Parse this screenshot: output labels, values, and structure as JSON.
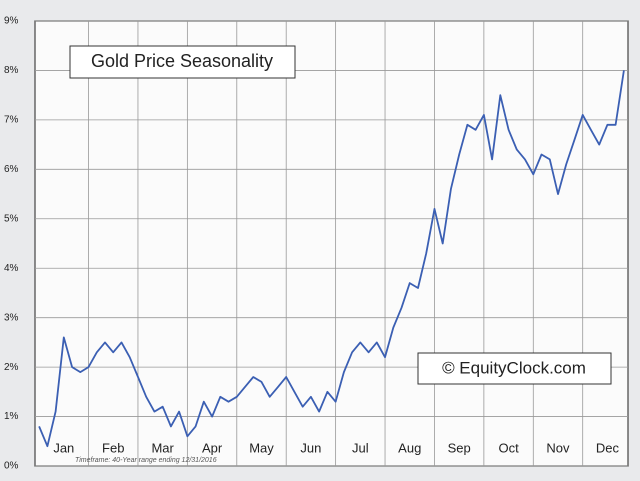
{
  "chart_data": {
    "type": "line",
    "title": "Gold Price Seasonality",
    "annotations": [
      "© EquityClock.com",
      "Timeframe: 40-Year range ending 12/31/2016"
    ],
    "categories": [
      null,
      null,
      null,
      "Jan",
      null,
      null,
      null,
      null,
      null,
      "Feb",
      null,
      null,
      null,
      null,
      null,
      "Mar",
      null,
      null,
      null,
      null,
      null,
      "Apr",
      null,
      null,
      null,
      null,
      null,
      "May",
      null,
      null,
      null,
      null,
      null,
      "Jun",
      null,
      null,
      null,
      null,
      null,
      "Jul",
      null,
      null,
      null,
      null,
      null,
      "Aug",
      null,
      null,
      null,
      null,
      null,
      "Sep",
      null,
      null,
      null,
      null,
      null,
      "Oct",
      null,
      null,
      null,
      null,
      null,
      "Nov",
      null,
      null,
      null,
      null,
      null,
      "Dec",
      null,
      null
    ],
    "series": [
      {
        "name": "Gold",
        "color": "#3b5fb3",
        "values": [
          0.8,
          0.4,
          1.1,
          2.6,
          2.0,
          1.9,
          2.0,
          2.3,
          2.5,
          2.3,
          2.5,
          2.2,
          1.8,
          1.4,
          1.1,
          1.2,
          0.8,
          1.1,
          0.6,
          0.8,
          1.3,
          1.0,
          1.4,
          1.3,
          1.4,
          1.6,
          1.8,
          1.7,
          1.4,
          1.6,
          1.8,
          1.5,
          1.2,
          1.4,
          1.1,
          1.5,
          1.3,
          1.9,
          2.3,
          2.5,
          2.3,
          2.5,
          2.2,
          2.8,
          3.2,
          3.7,
          3.6,
          4.3,
          5.2,
          4.5,
          5.6,
          6.3,
          6.9,
          6.8,
          7.1,
          6.2,
          7.5,
          6.8,
          6.4,
          6.2,
          5.9,
          6.3,
          6.2,
          5.5,
          6.1,
          6.6,
          7.1,
          6.8,
          6.5,
          6.9,
          6.9,
          8.0
        ]
      }
    ],
    "ylim": [
      0,
      9
    ],
    "yticks": [
      {
        "value": 0,
        "label": "0%"
      },
      {
        "value": 1,
        "label": "1%"
      },
      {
        "value": 2,
        "label": "2%"
      },
      {
        "value": 3,
        "label": "3%"
      },
      {
        "value": 4,
        "label": "4%"
      },
      {
        "value": 5,
        "label": "5%"
      },
      {
        "value": 6,
        "label": "6%"
      },
      {
        "value": 7,
        "label": "7%"
      },
      {
        "value": 8,
        "label": "8%"
      },
      {
        "value": 9,
        "label": "9%"
      }
    ],
    "grid": true
  }
}
